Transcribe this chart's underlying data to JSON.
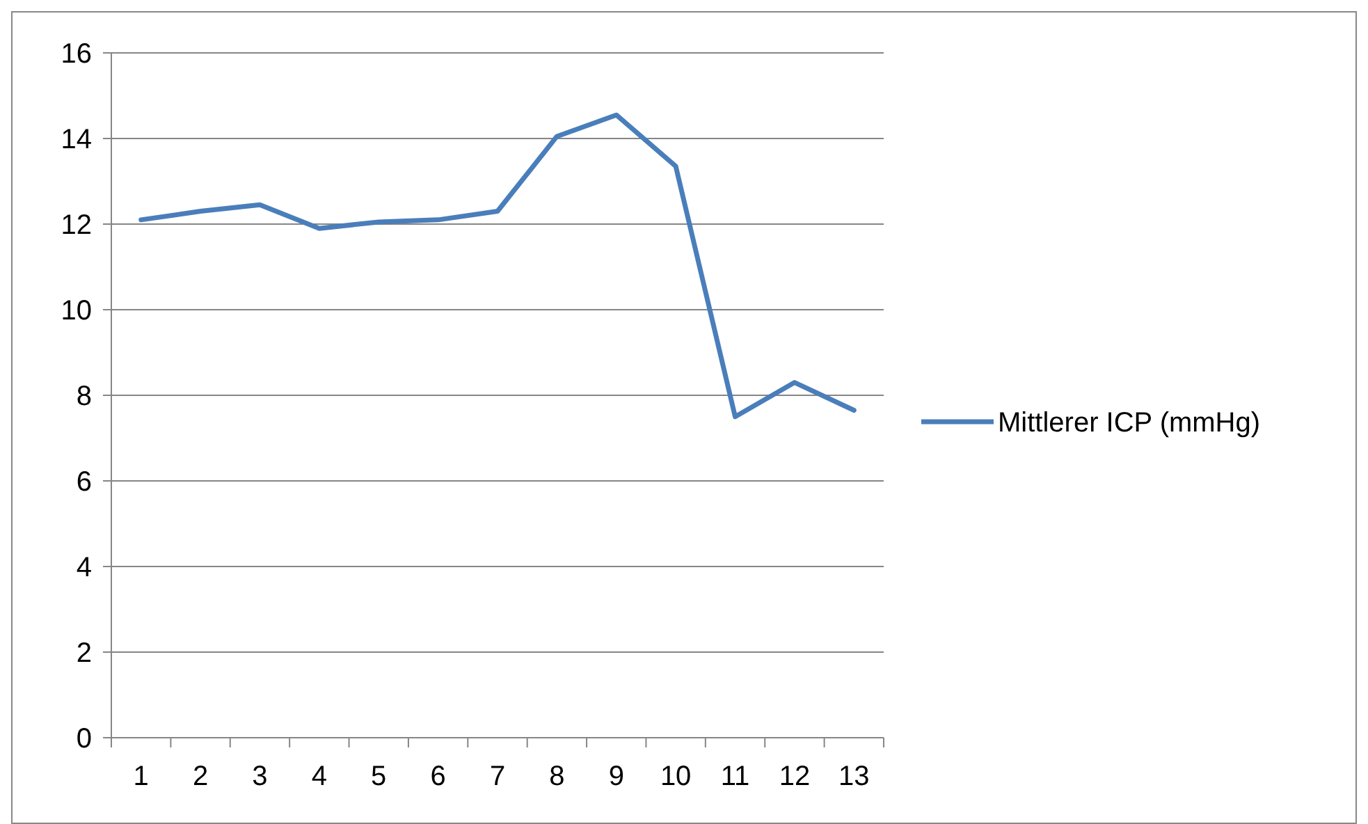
{
  "chart_data": {
    "type": "line",
    "categories": [
      "1",
      "2",
      "3",
      "4",
      "5",
      "6",
      "7",
      "8",
      "9",
      "10",
      "11",
      "12",
      "13"
    ],
    "series": [
      {
        "name": "Mittlerer ICP (mmHg)",
        "color": "#4a7ebb",
        "values": [
          12.1,
          12.3,
          12.45,
          11.9,
          12.05,
          12.1,
          12.3,
          14.05,
          14.55,
          13.35,
          7.5,
          8.3,
          7.65
        ]
      }
    ],
    "ylim": [
      0,
      16
    ],
    "yticks": [
      0,
      2,
      4,
      6,
      8,
      10,
      12,
      14,
      16
    ],
    "grid": "y",
    "legend": "right",
    "marker": "none",
    "line_style": "solid"
  }
}
